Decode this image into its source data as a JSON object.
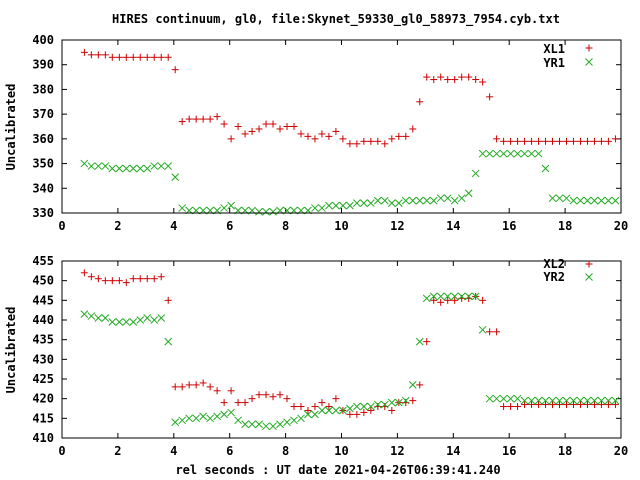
{
  "title": "HIRES continuum, gl0, file:Skynet_59330_gl0_58973_7954.cyb.txt",
  "xlabel": "rel seconds : UT date 2021-04-26T06:39:41.240",
  "colors": {
    "series1": "#cc0000",
    "series2": "#22aa22"
  },
  "chart_data": [
    {
      "type": "scatter",
      "ylabel": "Uncalibrated",
      "xlim": [
        0,
        20
      ],
      "ylim": [
        330,
        400
      ],
      "xticks": [
        0,
        2,
        4,
        6,
        8,
        10,
        12,
        14,
        16,
        18,
        20
      ],
      "yticks": [
        330,
        340,
        350,
        360,
        370,
        380,
        390,
        400
      ],
      "legend_position": "top-right",
      "grid": false,
      "series": [
        {
          "name": "XL1",
          "marker": "plus",
          "x": [
            0.8,
            1.05,
            1.3,
            1.55,
            1.8,
            2.05,
            2.3,
            2.55,
            2.8,
            3.05,
            3.3,
            3.55,
            3.8,
            4.05,
            4.3,
            4.55,
            4.8,
            5.05,
            5.3,
            5.55,
            5.8,
            6.05,
            6.3,
            6.55,
            6.8,
            7.05,
            7.3,
            7.55,
            7.8,
            8.05,
            8.3,
            8.55,
            8.8,
            9.05,
            9.3,
            9.55,
            9.8,
            10.05,
            10.3,
            10.55,
            10.8,
            11.05,
            11.3,
            11.55,
            11.8,
            12.05,
            12.3,
            12.55,
            12.8,
            13.05,
            13.3,
            13.55,
            13.8,
            14.05,
            14.3,
            14.55,
            14.8,
            15.05,
            15.3,
            15.55,
            15.8,
            16.05,
            16.3,
            16.55,
            16.8,
            17.05,
            17.3,
            17.55,
            17.8,
            18.05,
            18.3,
            18.55,
            18.8,
            19.05,
            19.3,
            19.55,
            19.8
          ],
          "y": [
            395,
            394,
            394,
            394,
            393,
            393,
            393,
            393,
            393,
            393,
            393,
            393,
            393,
            388,
            367,
            368,
            368,
            368,
            368,
            369,
            366,
            360,
            365,
            362,
            363,
            364,
            366,
            366,
            364,
            365,
            365,
            362,
            361,
            360,
            362,
            361,
            363,
            360,
            358,
            358,
            359,
            359,
            359,
            358,
            360,
            361,
            361,
            364,
            375,
            385,
            384,
            385,
            384,
            384,
            385,
            385,
            384,
            383,
            377,
            360,
            359,
            359,
            359,
            359,
            359,
            359,
            359,
            359,
            359,
            359,
            359,
            359,
            359,
            359,
            359,
            359,
            360
          ]
        },
        {
          "name": "YR1",
          "marker": "cross",
          "x": [
            0.8,
            1.05,
            1.3,
            1.55,
            1.8,
            2.05,
            2.3,
            2.55,
            2.8,
            3.05,
            3.3,
            3.55,
            3.8,
            4.05,
            4.3,
            4.55,
            4.8,
            5.05,
            5.3,
            5.55,
            5.8,
            6.05,
            6.3,
            6.55,
            6.8,
            7.05,
            7.3,
            7.55,
            7.8,
            8.05,
            8.3,
            8.55,
            8.8,
            9.05,
            9.3,
            9.55,
            9.8,
            10.05,
            10.3,
            10.55,
            10.8,
            11.05,
            11.3,
            11.55,
            11.8,
            12.05,
            12.3,
            12.55,
            12.8,
            13.05,
            13.3,
            13.55,
            13.8,
            14.05,
            14.3,
            14.55,
            14.8,
            15.05,
            15.3,
            15.55,
            15.8,
            16.05,
            16.3,
            16.55,
            16.8,
            17.05,
            17.3,
            17.55,
            17.8,
            18.05,
            18.3,
            18.55,
            18.8,
            19.05,
            19.3,
            19.55,
            19.8
          ],
          "y": [
            350,
            349,
            349,
            349,
            348,
            348,
            348,
            348,
            348,
            348,
            349,
            349,
            349,
            344.5,
            332,
            331,
            331,
            331,
            331,
            331,
            332,
            333,
            331,
            331,
            331,
            330.5,
            330.5,
            330.5,
            331,
            331,
            331,
            331,
            331,
            332,
            332,
            333,
            333,
            333,
            333,
            334,
            334,
            334,
            335,
            335,
            334,
            334,
            335,
            335,
            335,
            335,
            335,
            336,
            336,
            335,
            336,
            338,
            346,
            354,
            354,
            354,
            354,
            354,
            354,
            354,
            354,
            354,
            348,
            336,
            336,
            336,
            335,
            335,
            335,
            335,
            335,
            335,
            335
          ]
        }
      ]
    },
    {
      "type": "scatter",
      "ylabel": "Uncalibrated",
      "xlim": [
        0,
        20
      ],
      "ylim": [
        410,
        455
      ],
      "xticks": [
        0,
        2,
        4,
        6,
        8,
        10,
        12,
        14,
        16,
        18,
        20
      ],
      "yticks": [
        410,
        415,
        420,
        425,
        430,
        435,
        440,
        445,
        450,
        455
      ],
      "legend_position": "top-right",
      "grid": false,
      "series": [
        {
          "name": "XL2",
          "marker": "plus",
          "x": [
            0.8,
            1.05,
            1.3,
            1.55,
            1.8,
            2.05,
            2.3,
            2.55,
            2.8,
            3.05,
            3.3,
            3.55,
            3.8,
            4.05,
            4.3,
            4.55,
            4.8,
            5.05,
            5.3,
            5.55,
            5.8,
            6.05,
            6.3,
            6.55,
            6.8,
            7.05,
            7.3,
            7.55,
            7.8,
            8.05,
            8.3,
            8.55,
            8.8,
            9.05,
            9.3,
            9.55,
            9.8,
            10.05,
            10.3,
            10.55,
            10.8,
            11.05,
            11.3,
            11.55,
            11.8,
            12.05,
            12.3,
            12.55,
            12.8,
            13.05,
            13.3,
            13.55,
            13.8,
            14.05,
            14.3,
            14.55,
            14.8,
            15.05,
            15.3,
            15.55,
            15.8,
            16.05,
            16.3,
            16.55,
            16.8,
            17.05,
            17.3,
            17.55,
            17.8,
            18.05,
            18.3,
            18.55,
            18.8,
            19.05,
            19.3,
            19.55,
            19.8
          ],
          "y": [
            452,
            451,
            450.5,
            450,
            450,
            450,
            449.5,
            450.5,
            450.5,
            450.5,
            450.5,
            451,
            445,
            423,
            423,
            423.5,
            423.5,
            424,
            423,
            422,
            419,
            422,
            419,
            419,
            420,
            421,
            421,
            420.5,
            421,
            420,
            418,
            418,
            417,
            418,
            419,
            418,
            420,
            417,
            416,
            416,
            416.5,
            417,
            418,
            418,
            417,
            419,
            419,
            419.5,
            423.5,
            434.5,
            445,
            444.5,
            445,
            445,
            445.5,
            445.5,
            446,
            445,
            437,
            437,
            418,
            418,
            418,
            418.5,
            418.5,
            418.5,
            418.5,
            418.5,
            418.5,
            418.5,
            418.5,
            418.5,
            418.5,
            418.5,
            418.5,
            418.5,
            418.5
          ]
        },
        {
          "name": "YR2",
          "marker": "cross",
          "x": [
            0.8,
            1.05,
            1.3,
            1.55,
            1.8,
            2.05,
            2.3,
            2.55,
            2.8,
            3.05,
            3.3,
            3.55,
            3.8,
            4.05,
            4.3,
            4.55,
            4.8,
            5.05,
            5.3,
            5.55,
            5.8,
            6.05,
            6.3,
            6.55,
            6.8,
            7.05,
            7.3,
            7.55,
            7.8,
            8.05,
            8.3,
            8.55,
            8.8,
            9.05,
            9.3,
            9.55,
            9.8,
            10.05,
            10.3,
            10.55,
            10.8,
            11.05,
            11.3,
            11.55,
            11.8,
            12.05,
            12.3,
            12.55,
            12.8,
            13.05,
            13.3,
            13.55,
            13.8,
            14.05,
            14.3,
            14.55,
            14.8,
            15.05,
            15.3,
            15.55,
            15.8,
            16.05,
            16.3,
            16.55,
            16.8,
            17.05,
            17.3,
            17.55,
            17.8,
            18.05,
            18.3,
            18.55,
            18.8,
            19.05,
            19.3,
            19.55,
            19.8
          ],
          "y": [
            441.5,
            441,
            440.5,
            440.5,
            439.5,
            439.5,
            439.5,
            439.5,
            440,
            440.5,
            440,
            440.5,
            434.5,
            414,
            414.5,
            415,
            415,
            415.5,
            415,
            415.5,
            416,
            416.5,
            414.5,
            413.5,
            413.5,
            413.5,
            413,
            413,
            413.5,
            414,
            414.5,
            415,
            416,
            416,
            417,
            417,
            417,
            417,
            417.5,
            418,
            418,
            418,
            418.5,
            418.5,
            419,
            419,
            419.5,
            423.5,
            434.5,
            445.5,
            446,
            446,
            446,
            446,
            446,
            446,
            446,
            437.5,
            420,
            420,
            420,
            420,
            420,
            419.5,
            419.5,
            419.5,
            419.5,
            419.5,
            419.5,
            419.5,
            419.5,
            419.5,
            419.5,
            419.5,
            419.5,
            419.5,
            419.5
          ]
        }
      ]
    }
  ]
}
